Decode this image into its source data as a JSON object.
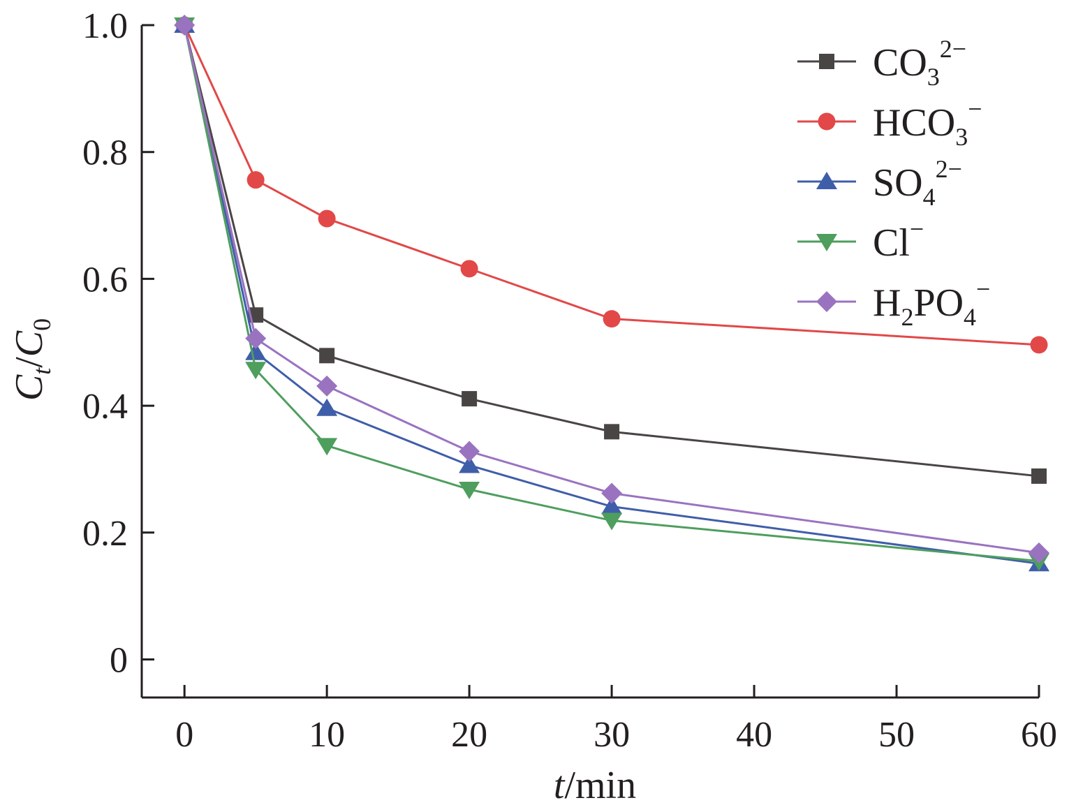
{
  "chart_data": {
    "type": "line",
    "x": [
      0,
      5,
      10,
      20,
      30,
      60
    ],
    "xlim": [
      -3,
      60
    ],
    "ylim": [
      -0.06,
      1.0
    ],
    "xticks": [
      0,
      10,
      20,
      30,
      40,
      50,
      60
    ],
    "yticks": [
      0,
      0.2,
      0.4,
      0.6,
      0.8,
      1.0
    ],
    "xtick_labels": [
      "0",
      "10",
      "20",
      "30",
      "40",
      "50",
      "60"
    ],
    "ytick_labels": [
      "0",
      "0.2",
      "0.4",
      "0.6",
      "0.8",
      "1.0"
    ],
    "xlabel": {
      "var": "t",
      "unit": "/min"
    },
    "ylabel": {
      "num": "C",
      "num_sub": "t",
      "sep": "/",
      "den": "C",
      "den_sub": "0"
    },
    "grid": false,
    "legend_position": "top-right",
    "series": [
      {
        "base": "CO",
        "sub": "3",
        "sup": "2−",
        "color": "#4a4545",
        "marker": "square",
        "values": [
          1.0,
          0.543,
          0.479,
          0.411,
          0.359,
          0.289
        ]
      },
      {
        "base": "HCO",
        "sub": "3",
        "sup": "−",
        "color": "#e24848",
        "marker": "circle",
        "values": [
          1.0,
          0.756,
          0.695,
          0.616,
          0.537,
          0.496
        ]
      },
      {
        "base": "SO",
        "sub": "4",
        "sup": "2−",
        "color": "#3f5ea9",
        "marker": "triangle-up",
        "values": [
          1.0,
          0.484,
          0.396,
          0.306,
          0.241,
          0.151
        ]
      },
      {
        "base": "Cl",
        "sub": "",
        "sup": "−",
        "color": "#4e9e5e",
        "marker": "triangle-down",
        "values": [
          1.0,
          0.457,
          0.337,
          0.268,
          0.219,
          0.155
        ]
      },
      {
        "base": "H",
        "sub": "2",
        "base2": "PO",
        "sub2": "4",
        "sup": "−",
        "color": "#9a73c0",
        "marker": "diamond",
        "values": [
          1.0,
          0.506,
          0.431,
          0.328,
          0.262,
          0.168
        ]
      }
    ]
  }
}
